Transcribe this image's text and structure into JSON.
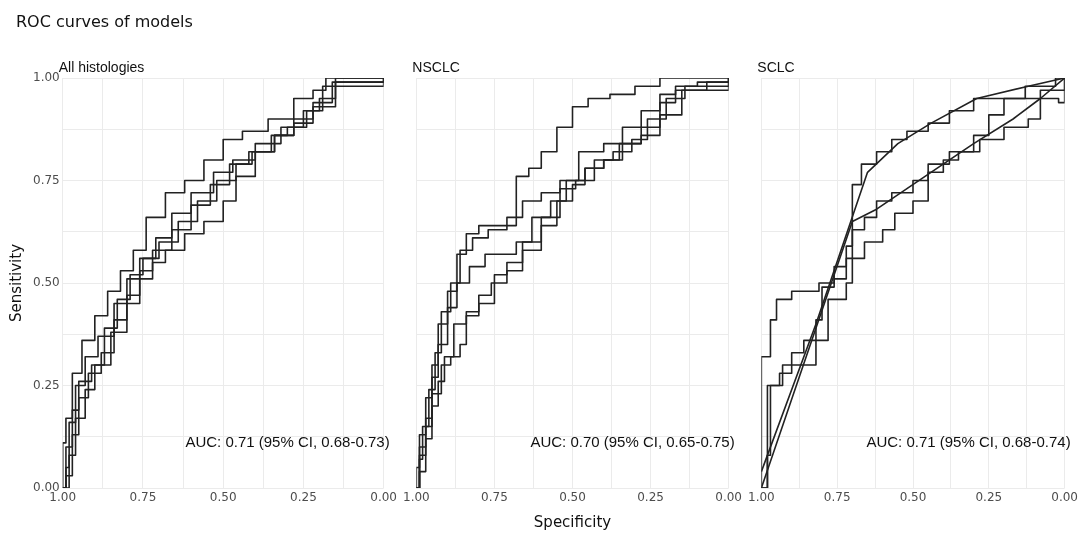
{
  "chart_data": [
    {
      "type": "step",
      "title": "ROC curves of models",
      "subtitle": "All histologies",
      "ylabel": "Sensitivity",
      "annotations": [
        "AUC: 0.71 (95% CI, 0.68-0.73)"
      ],
      "xlim": [
        1,
        0
      ],
      "ylim": [
        0,
        1
      ],
      "xticks": [
        {
          "value": 1,
          "label": "1.00"
        },
        {
          "value": 0.875,
          "label": null
        },
        {
          "value": 0.75,
          "label": "0.75"
        },
        {
          "value": 0.625,
          "label": null
        },
        {
          "value": 0.5,
          "label": "0.50"
        },
        {
          "value": 0.375,
          "label": null
        },
        {
          "value": 0.25,
          "label": "0.25"
        },
        {
          "value": 0.125,
          "label": null
        },
        {
          "value": 0,
          "label": "0.00"
        }
      ],
      "yticks": [
        {
          "value": 0,
          "label": "0.00"
        },
        {
          "value": 0.125,
          "label": null
        },
        {
          "value": 0.25,
          "label": "0.25"
        },
        {
          "value": 0.375,
          "label": null
        },
        {
          "value": 0.5,
          "label": "0.50"
        },
        {
          "value": 0.625,
          "label": null
        },
        {
          "value": 0.75,
          "label": "0.75"
        },
        {
          "value": 0.875,
          "label": null
        },
        {
          "value": 1,
          "label": "1.00"
        }
      ],
      "grid": true,
      "series": [
        {
          "color": "#222222",
          "x": [
            1,
            1,
            0.99,
            0.97,
            0.94,
            0.9,
            0.86,
            0.82,
            0.78,
            0.74,
            0.68,
            0.62,
            0.56,
            0.5,
            0.44,
            0.36,
            0.28,
            0.22,
            0.18,
            0
          ],
          "values": [
            0,
            0.11,
            0.17,
            0.28,
            0.36,
            0.42,
            0.48,
            0.53,
            0.58,
            0.66,
            0.72,
            0.75,
            0.8,
            0.85,
            0.87,
            0.9,
            0.95,
            0.97,
            1,
            1
          ]
        },
        {
          "color": "#222222",
          "x": [
            1,
            0.99,
            0.98,
            0.96,
            0.93,
            0.89,
            0.84,
            0.8,
            0.76,
            0.71,
            0.66,
            0.6,
            0.53,
            0.47,
            0.4,
            0.32,
            0.25,
            0.2,
            0.15,
            0
          ],
          "values": [
            0,
            0.05,
            0.16,
            0.25,
            0.32,
            0.37,
            0.45,
            0.51,
            0.56,
            0.61,
            0.67,
            0.72,
            0.77,
            0.8,
            0.84,
            0.88,
            0.92,
            0.95,
            1,
            1
          ]
        },
        {
          "color": "#222222",
          "x": [
            1,
            0.99,
            0.97,
            0.95,
            0.92,
            0.88,
            0.84,
            0.8,
            0.76,
            0.72,
            0.66,
            0.6,
            0.54,
            0.48,
            0.42,
            0.34,
            0.28,
            0.22,
            0.16,
            0
          ],
          "values": [
            0,
            0.03,
            0.13,
            0.22,
            0.28,
            0.33,
            0.41,
            0.47,
            0.53,
            0.58,
            0.63,
            0.69,
            0.74,
            0.79,
            0.82,
            0.86,
            0.9,
            0.94,
            0.99,
            1
          ]
        },
        {
          "color": "#222222",
          "x": [
            1,
            0.98,
            0.96,
            0.93,
            0.9,
            0.85,
            0.8,
            0.76,
            0.72,
            0.68,
            0.62,
            0.56,
            0.5,
            0.46,
            0.4,
            0.34,
            0.28,
            0.22,
            0.15,
            0
          ],
          "values": [
            0,
            0.08,
            0.17,
            0.24,
            0.3,
            0.38,
            0.45,
            0.51,
            0.55,
            0.58,
            0.62,
            0.65,
            0.7,
            0.76,
            0.82,
            0.86,
            0.89,
            0.93,
            0.99,
            1
          ]
        },
        {
          "color": "#222222",
          "x": [
            1,
            0.99,
            0.97,
            0.95,
            0.91,
            0.87,
            0.83,
            0.79,
            0.75,
            0.7,
            0.64,
            0.58,
            0.52,
            0.46,
            0.41,
            0.35,
            0.3,
            0.24,
            0.19,
            0
          ],
          "values": [
            0,
            0.1,
            0.19,
            0.26,
            0.3,
            0.39,
            0.46,
            0.52,
            0.56,
            0.6,
            0.65,
            0.7,
            0.75,
            0.79,
            0.82,
            0.86,
            0.88,
            0.92,
            0.98,
            1
          ]
        }
      ]
    },
    {
      "type": "step",
      "subtitle": "NSCLC",
      "xlabel": "Specificity",
      "annotations": [
        "AUC: 0.70 (95% CI, 0.65-0.75)"
      ],
      "tick_labels": "x",
      "xlim": [
        1,
        0
      ],
      "ylim": [
        0,
        1
      ],
      "xticks": [
        {
          "value": 1,
          "label": "1.00"
        },
        {
          "value": 0.875,
          "label": null
        },
        {
          "value": 0.75,
          "label": "0.75"
        },
        {
          "value": 0.625,
          "label": null
        },
        {
          "value": 0.5,
          "label": "0.50"
        },
        {
          "value": 0.375,
          "label": null
        },
        {
          "value": 0.25,
          "label": "0.25"
        },
        {
          "value": 0.125,
          "label": null
        },
        {
          "value": 0,
          "label": "0.00"
        }
      ],
      "grid": true,
      "series": [
        {
          "color": "#222222",
          "x": [
            1,
            1,
            0.99,
            0.97,
            0.95,
            0.93,
            0.9,
            0.87,
            0.84,
            0.8,
            0.74,
            0.68,
            0.64,
            0.6,
            0.55,
            0.5,
            0.45,
            0.38,
            0.3,
            0.22,
            0.15,
            0
          ],
          "values": [
            0,
            0.05,
            0.13,
            0.22,
            0.3,
            0.4,
            0.48,
            0.57,
            0.62,
            0.64,
            0.64,
            0.76,
            0.78,
            0.82,
            0.88,
            0.93,
            0.95,
            0.96,
            0.98,
            1,
            1,
            1
          ]
        },
        {
          "color": "#222222",
          "x": [
            1,
            0.99,
            0.98,
            0.96,
            0.94,
            0.92,
            0.89,
            0.86,
            0.82,
            0.77,
            0.71,
            0.66,
            0.6,
            0.54,
            0.48,
            0.4,
            0.34,
            0.28,
            0.22,
            0.17,
            0.1,
            0
          ],
          "values": [
            0,
            0.07,
            0.15,
            0.24,
            0.33,
            0.43,
            0.5,
            0.58,
            0.61,
            0.63,
            0.66,
            0.7,
            0.72,
            0.75,
            0.82,
            0.84,
            0.88,
            0.92,
            0.96,
            0.98,
            0.99,
            1
          ]
        },
        {
          "color": "#222222",
          "x": [
            1,
            0.99,
            0.97,
            0.95,
            0.93,
            0.9,
            0.87,
            0.83,
            0.78,
            0.73,
            0.68,
            0.63,
            0.57,
            0.52,
            0.46,
            0.4,
            0.35,
            0.28,
            0.22,
            0.17,
            0.07,
            0
          ],
          "values": [
            0,
            0.1,
            0.17,
            0.27,
            0.35,
            0.44,
            0.5,
            0.54,
            0.57,
            0.57,
            0.6,
            0.66,
            0.7,
            0.75,
            0.78,
            0.8,
            0.84,
            0.88,
            0.94,
            0.97,
            0.99,
            1
          ]
        },
        {
          "color": "#222222",
          "x": [
            1,
            0.99,
            0.97,
            0.95,
            0.93,
            0.91,
            0.88,
            0.84,
            0.8,
            0.75,
            0.71,
            0.66,
            0.6,
            0.54,
            0.49,
            0.43,
            0.37,
            0.31,
            0.26,
            0.2,
            0.14,
            0
          ],
          "values": [
            0,
            0.04,
            0.12,
            0.2,
            0.26,
            0.32,
            0.4,
            0.42,
            0.45,
            0.52,
            0.55,
            0.6,
            0.66,
            0.73,
            0.75,
            0.8,
            0.82,
            0.85,
            0.9,
            0.95,
            0.98,
            1
          ]
        },
        {
          "color": "#222222",
          "x": [
            1,
            0.99,
            0.97,
            0.95,
            0.92,
            0.89,
            0.86,
            0.84,
            0.8,
            0.76,
            0.71,
            0.66,
            0.6,
            0.55,
            0.5,
            0.46,
            0.4,
            0.34,
            0.28,
            0.22,
            0.15,
            0
          ],
          "values": [
            0,
            0.08,
            0.15,
            0.23,
            0.3,
            0.32,
            0.35,
            0.43,
            0.47,
            0.5,
            0.53,
            0.58,
            0.64,
            0.7,
            0.74,
            0.78,
            0.8,
            0.84,
            0.86,
            0.91,
            0.97,
            1
          ]
        }
      ]
    },
    {
      "type": "step",
      "subtitle": "SCLC",
      "annotations": [
        "AUC: 0.71 (95% CI, 0.68-0.74)"
      ],
      "tick_labels": "x",
      "xlim": [
        1,
        0
      ],
      "ylim": [
        0,
        1
      ],
      "xticks": [
        {
          "value": 1,
          "label": "1.00"
        },
        {
          "value": 0.875,
          "label": null
        },
        {
          "value": 0.75,
          "label": "0.75"
        },
        {
          "value": 0.625,
          "label": null
        },
        {
          "value": 0.5,
          "label": "0.50"
        },
        {
          "value": 0.375,
          "label": null
        },
        {
          "value": 0.25,
          "label": "0.25"
        },
        {
          "value": 0.125,
          "label": null
        },
        {
          "value": 0,
          "label": "0.00"
        }
      ],
      "grid": true,
      "series": [
        {
          "color": "#222222",
          "x": [
            1,
            1,
            0.97,
            0.97,
            0.95,
            0.9,
            0.85,
            0.81,
            0.76,
            0.72,
            0.7,
            0.67,
            0.62,
            0.57,
            0.52,
            0.45,
            0.38,
            0.3,
            0.2,
            0.13,
            0.1,
            0.03,
            0
          ],
          "values": [
            0,
            0.32,
            0.32,
            0.41,
            0.46,
            0.48,
            0.48,
            0.5,
            0.54,
            0.59,
            0.74,
            0.79,
            0.82,
            0.85,
            0.87,
            0.89,
            0.92,
            0.95,
            0.95,
            0.98,
            0.98,
            1,
            1
          ]
        },
        {
          "color": "#222222",
          "x": [
            1,
            0.98,
            0.97,
            0.93,
            0.88,
            0.82,
            0.8,
            0.76,
            0.72,
            0.7,
            0.66,
            0.62,
            0.57,
            0.5,
            0.45,
            0.4,
            0.35,
            0.28,
            0.2,
            0.12,
            0.08,
            0
          ],
          "values": [
            0,
            0.08,
            0.25,
            0.3,
            0.3,
            0.41,
            0.49,
            0.51,
            0.56,
            0.63,
            0.66,
            0.7,
            0.72,
            0.75,
            0.77,
            0.8,
            0.82,
            0.85,
            0.88,
            0.9,
            0.97,
            1
          ]
        },
        {
          "color": "#222222",
          "x": [
            1,
            0.98,
            0.94,
            0.9,
            0.86,
            0.8,
            0.78,
            0.72,
            0.7,
            0.66,
            0.6,
            0.56,
            0.5,
            0.45,
            0.38,
            0.3,
            0.25,
            0.2,
            0.12,
            0.05,
            0.02,
            0
          ],
          "values": [
            0,
            0.25,
            0.28,
            0.33,
            0.36,
            0.36,
            0.46,
            0.5,
            0.56,
            0.6,
            0.63,
            0.67,
            0.7,
            0.79,
            0.82,
            0.86,
            0.91,
            0.95,
            0.95,
            0.95,
            0.94,
            1
          ]
        },
        {
          "type": "line",
          "color": "#222222",
          "x": [
            1,
            0.7,
            0.62,
            0.52,
            0.42,
            0.3,
            0.17,
            0.08,
            0
          ],
          "values": [
            0,
            0.65,
            0.68,
            0.73,
            0.78,
            0.84,
            0.9,
            0.95,
            1
          ]
        },
        {
          "type": "line",
          "color": "#222222",
          "x": [
            1,
            0.82,
            0.65,
            0.55,
            0.44,
            0.29,
            0.12,
            0
          ],
          "values": [
            0.04,
            0.4,
            0.77,
            0.84,
            0.89,
            0.95,
            0.98,
            1
          ]
        }
      ]
    }
  ]
}
